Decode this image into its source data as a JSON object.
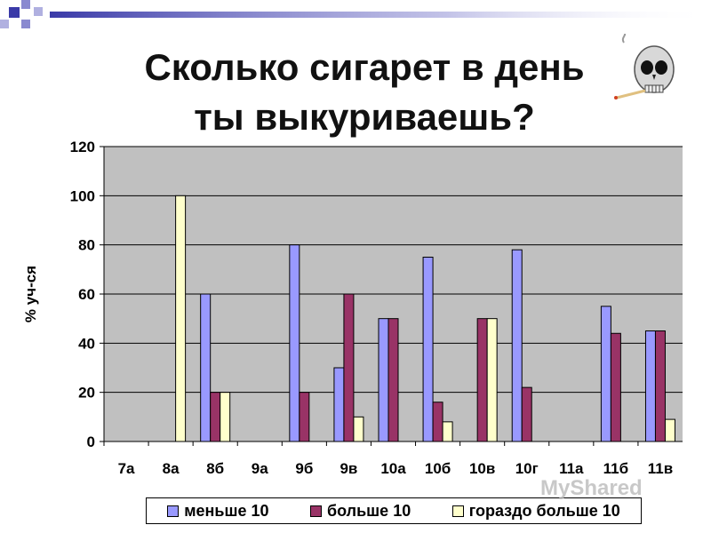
{
  "slide": {
    "title_line1": "Сколько сигарет в день",
    "title_line2": "ты выкуриваешь?",
    "watermark": "MyShared"
  },
  "colors": {
    "series": [
      "#9999ff",
      "#993366",
      "#ffffcc"
    ],
    "plot_bg": "#c0c0c0",
    "deco": "#3a3aa8"
  },
  "icons": [
    "skull-smoking-icon",
    "corner-squares-decoration"
  ],
  "chart_data": {
    "type": "bar",
    "title": "",
    "xlabel": "",
    "ylabel": "% уч-ся",
    "ylim": [
      0,
      120
    ],
    "yticks": [
      0,
      20,
      40,
      60,
      80,
      100,
      120
    ],
    "grid": true,
    "legend_position": "bottom",
    "categories": [
      "7а",
      "8а",
      "8б",
      "9а",
      "9б",
      "9в",
      "10а",
      "10б",
      "10в",
      "10г",
      "11а",
      "11б",
      "11в"
    ],
    "series": [
      {
        "name": "меньше 10",
        "values": [
          0,
          0,
          60,
          0,
          80,
          30,
          50,
          75,
          0,
          78,
          0,
          55,
          45
        ]
      },
      {
        "name": "больше 10",
        "values": [
          0,
          0,
          20,
          0,
          20,
          60,
          50,
          16,
          50,
          22,
          0,
          44,
          45
        ]
      },
      {
        "name": "гораздо больше 10",
        "values": [
          0,
          100,
          20,
          0,
          0,
          10,
          0,
          8,
          50,
          0,
          0,
          0,
          9
        ]
      }
    ]
  }
}
